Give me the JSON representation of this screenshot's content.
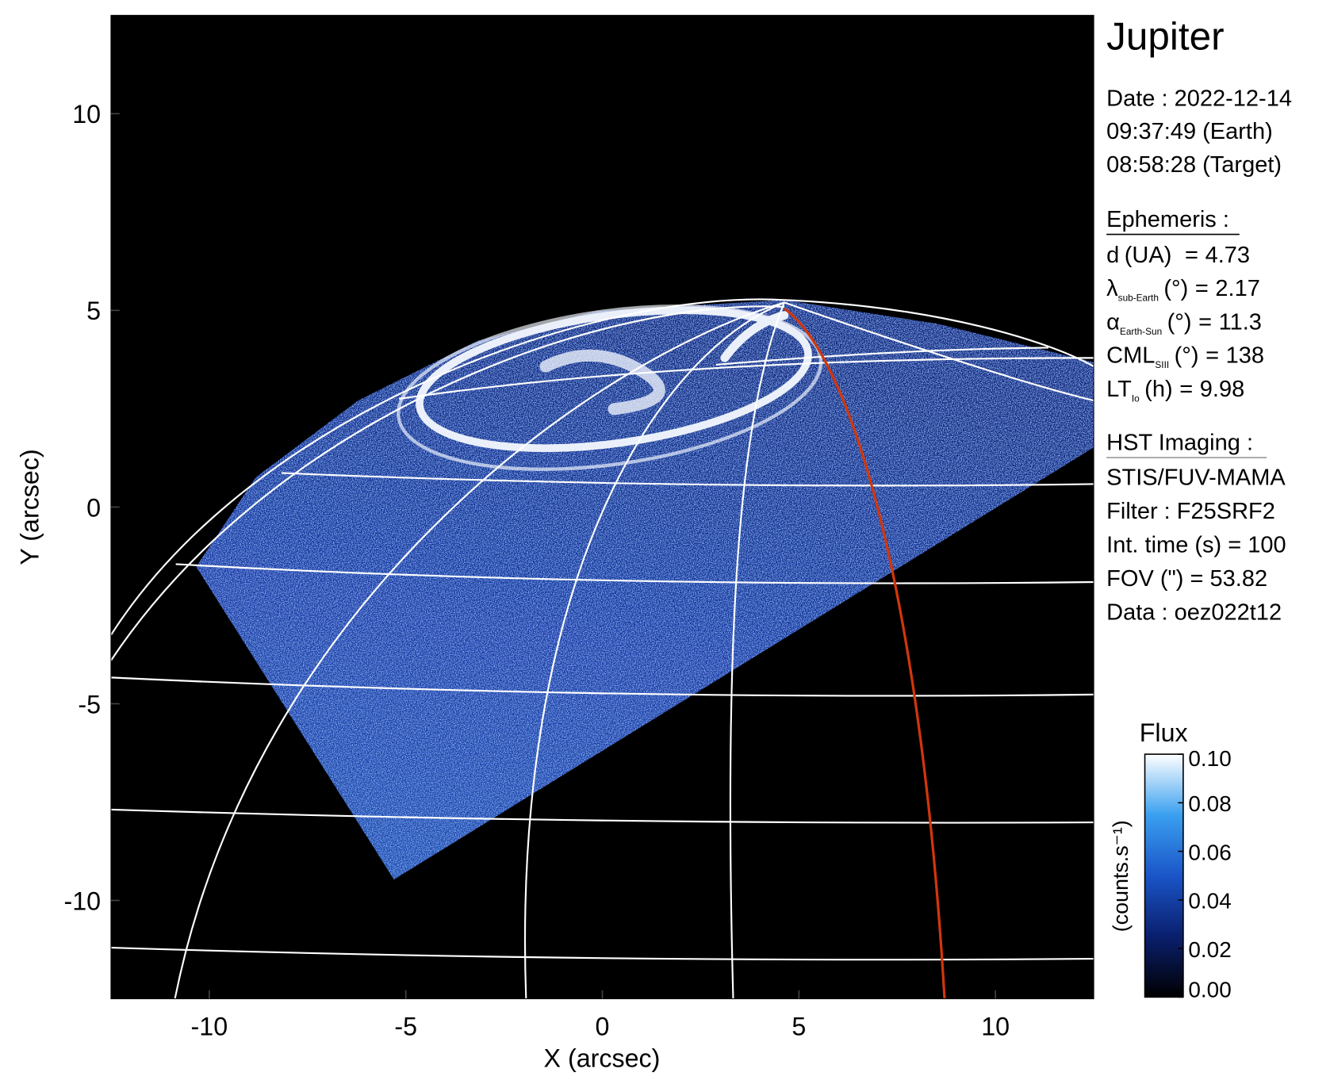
{
  "chart_data": {
    "type": "image",
    "xlabel": "X (arcsec)",
    "ylabel": "Y (arcsec)",
    "xlim": [
      -12.5,
      12.5
    ],
    "ylim": [
      -12.5,
      12.5
    ],
    "xticks": [
      -10,
      -5,
      0,
      5,
      10
    ],
    "yticks": [
      -10,
      -5,
      0,
      5,
      10
    ],
    "colorbar": {
      "title": "Flux",
      "label": "(counts.s⁻¹)",
      "lim": [
        0,
        0.1
      ],
      "ticks": [
        {
          "value": 0,
          "label": "0.00"
        },
        {
          "value": 0.02,
          "label": "0.02"
        },
        {
          "value": 0.04,
          "label": "0.04"
        },
        {
          "value": 0.06,
          "label": "0.06"
        },
        {
          "value": 0.08,
          "label": "0.08"
        },
        {
          "value": 0.1,
          "label": "0.10"
        }
      ],
      "colors": [
        "#000000",
        "#0a1f6e",
        "#1a55c8",
        "#3aa0f0",
        "#ffffff"
      ]
    }
  },
  "info": {
    "title": "Jupiter",
    "date_lines": [
      "Date : 2022-12-14",
      "09:37:49 (Earth)",
      "08:58:28 (Target)"
    ],
    "ephemeris": {
      "heading": "Ephemeris :",
      "rows": [
        {
          "symbol": "d",
          "unit": "(UA)   ",
          "sign": "=",
          "value": 4.73
        },
        {
          "symbol": "λ",
          "subscript": "sub-Earth",
          "unit": "(°)",
          "sign": "=",
          "value": 2.17
        },
        {
          "symbol": "α",
          "subscript": "Earth-Sun",
          "unit": "(°)",
          "sign": "=",
          "value": 11.3
        },
        {
          "symbol": "CML",
          "subscript": "SIII",
          "unit": "(°)",
          "sign": "=",
          "value": 138
        },
        {
          "symbol": "LT",
          "subscript": "Io",
          "unit": "(h)",
          "sign": "=",
          "value": 9.98
        }
      ]
    },
    "imaging": {
      "heading": "HST Imaging :",
      "lines": [
        "STIS/FUV-MAMA",
        "Filter : F25SRF2",
        "Int. time (s) = 100",
        "FOV (\") = 53.82",
        "Data : oez022t12"
      ]
    }
  }
}
